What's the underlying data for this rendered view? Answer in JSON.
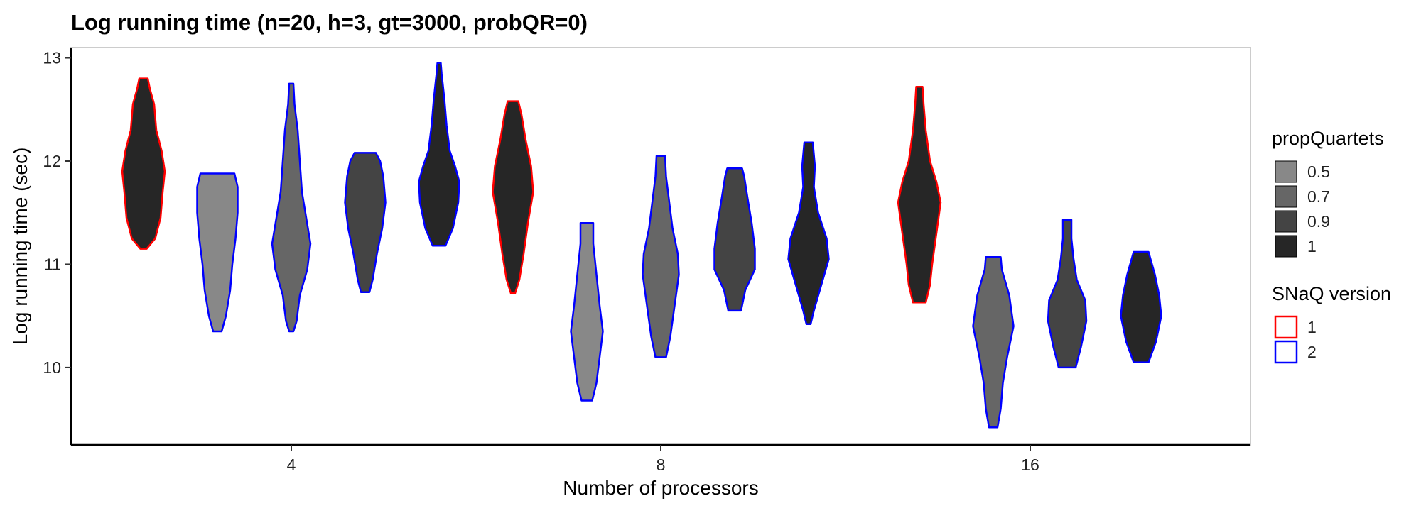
{
  "chart_data": {
    "type": "violin",
    "title": "Log running time (n=20, h=3, gt=3000, probQR=0)",
    "xlabel": "Number of processors",
    "ylabel": "Log running time (sec)",
    "categories": [
      "4",
      "8",
      "16"
    ],
    "yticks": [
      10,
      11,
      12,
      13
    ],
    "ylim": [
      9.25,
      13.1
    ],
    "grid": false,
    "legend_position": "right",
    "legends": {
      "fill": {
        "title": "propQuartets",
        "items": [
          {
            "label": "0.5",
            "color": "#888888"
          },
          {
            "label": "0.7",
            "color": "#666666"
          },
          {
            "label": "0.9",
            "color": "#444444"
          },
          {
            "label": "1",
            "color": "#262626"
          }
        ]
      },
      "outline": {
        "title": "SNaQ version",
        "items": [
          {
            "label": "1",
            "color": "#ff0000"
          },
          {
            "label": "2",
            "color": "#0000ff"
          }
        ]
      }
    },
    "violins": [
      {
        "processors": "4",
        "propQuartets": "1",
        "version": "1",
        "min": 11.15,
        "max": 12.8,
        "profile": [
          [
            11.15,
            0.15
          ],
          [
            11.25,
            0.55
          ],
          [
            11.45,
            0.8
          ],
          [
            11.7,
            0.9
          ],
          [
            11.9,
            1.0
          ],
          [
            12.1,
            0.85
          ],
          [
            12.3,
            0.6
          ],
          [
            12.55,
            0.5
          ],
          [
            12.7,
            0.3
          ],
          [
            12.8,
            0.2
          ]
        ]
      },
      {
        "processors": "4",
        "propQuartets": "0.5",
        "version": "2",
        "min": 10.35,
        "max": 11.88,
        "profile": [
          [
            10.35,
            0.2
          ],
          [
            10.5,
            0.4
          ],
          [
            10.75,
            0.6
          ],
          [
            11.0,
            0.7
          ],
          [
            11.25,
            0.85
          ],
          [
            11.5,
            0.95
          ],
          [
            11.75,
            0.95
          ],
          [
            11.88,
            0.8
          ]
        ]
      },
      {
        "processors": "4",
        "propQuartets": "0.7",
        "version": "2",
        "min": 10.35,
        "max": 12.75,
        "profile": [
          [
            10.35,
            0.1
          ],
          [
            10.45,
            0.25
          ],
          [
            10.7,
            0.4
          ],
          [
            10.95,
            0.75
          ],
          [
            11.2,
            0.9
          ],
          [
            11.45,
            0.7
          ],
          [
            11.7,
            0.5
          ],
          [
            12.0,
            0.4
          ],
          [
            12.3,
            0.3
          ],
          [
            12.55,
            0.15
          ],
          [
            12.75,
            0.1
          ]
        ]
      },
      {
        "processors": "4",
        "propQuartets": "0.9",
        "version": "2",
        "min": 10.73,
        "max": 12.08,
        "profile": [
          [
            10.73,
            0.2
          ],
          [
            10.85,
            0.35
          ],
          [
            11.1,
            0.55
          ],
          [
            11.35,
            0.8
          ],
          [
            11.6,
            0.95
          ],
          [
            11.85,
            0.85
          ],
          [
            12.0,
            0.7
          ],
          [
            12.08,
            0.5
          ]
        ]
      },
      {
        "processors": "4",
        "propQuartets": "1",
        "version": "2",
        "min": 11.18,
        "max": 12.95,
        "profile": [
          [
            11.18,
            0.3
          ],
          [
            11.35,
            0.65
          ],
          [
            11.6,
            0.9
          ],
          [
            11.8,
            0.95
          ],
          [
            11.95,
            0.75
          ],
          [
            12.1,
            0.5
          ],
          [
            12.35,
            0.35
          ],
          [
            12.6,
            0.25
          ],
          [
            12.85,
            0.12
          ],
          [
            12.95,
            0.08
          ]
        ]
      },
      {
        "processors": "8",
        "propQuartets": "1",
        "version": "1",
        "min": 10.72,
        "max": 12.58,
        "profile": [
          [
            10.72,
            0.1
          ],
          [
            10.85,
            0.3
          ],
          [
            11.1,
            0.5
          ],
          [
            11.4,
            0.7
          ],
          [
            11.7,
            0.95
          ],
          [
            11.95,
            0.85
          ],
          [
            12.2,
            0.6
          ],
          [
            12.45,
            0.4
          ],
          [
            12.58,
            0.25
          ]
        ]
      },
      {
        "processors": "8",
        "propQuartets": "0.5",
        "version": "2",
        "min": 9.68,
        "max": 11.4,
        "profile": [
          [
            9.68,
            0.25
          ],
          [
            9.85,
            0.45
          ],
          [
            10.1,
            0.6
          ],
          [
            10.35,
            0.75
          ],
          [
            10.6,
            0.6
          ],
          [
            10.9,
            0.45
          ],
          [
            11.2,
            0.3
          ],
          [
            11.4,
            0.3
          ]
        ]
      },
      {
        "processors": "8",
        "propQuartets": "0.7",
        "version": "2",
        "min": 10.1,
        "max": 12.05,
        "profile": [
          [
            10.1,
            0.25
          ],
          [
            10.3,
            0.45
          ],
          [
            10.6,
            0.65
          ],
          [
            10.9,
            0.85
          ],
          [
            11.1,
            0.8
          ],
          [
            11.35,
            0.55
          ],
          [
            11.6,
            0.4
          ],
          [
            11.85,
            0.25
          ],
          [
            12.05,
            0.2
          ]
        ]
      },
      {
        "processors": "8",
        "propQuartets": "0.9",
        "version": "2",
        "min": 10.55,
        "max": 11.93,
        "profile": [
          [
            10.55,
            0.3
          ],
          [
            10.75,
            0.5
          ],
          [
            10.95,
            0.95
          ],
          [
            11.15,
            0.95
          ],
          [
            11.4,
            0.8
          ],
          [
            11.65,
            0.6
          ],
          [
            11.85,
            0.45
          ],
          [
            11.93,
            0.35
          ]
        ]
      },
      {
        "processors": "8",
        "propQuartets": "1",
        "version": "2",
        "min": 10.42,
        "max": 12.18,
        "profile": [
          [
            10.42,
            0.1
          ],
          [
            10.55,
            0.25
          ],
          [
            10.8,
            0.6
          ],
          [
            11.05,
            0.95
          ],
          [
            11.25,
            0.85
          ],
          [
            11.5,
            0.45
          ],
          [
            11.75,
            0.25
          ],
          [
            11.95,
            0.3
          ],
          [
            12.18,
            0.2
          ]
        ]
      },
      {
        "processors": "16",
        "propQuartets": "1",
        "version": "1",
        "min": 10.63,
        "max": 12.72,
        "profile": [
          [
            10.63,
            0.3
          ],
          [
            10.8,
            0.5
          ],
          [
            11.0,
            0.6
          ],
          [
            11.3,
            0.8
          ],
          [
            11.6,
            1.0
          ],
          [
            11.8,
            0.8
          ],
          [
            12.0,
            0.5
          ],
          [
            12.3,
            0.3
          ],
          [
            12.55,
            0.2
          ],
          [
            12.72,
            0.15
          ]
        ]
      },
      {
        "processors": "16",
        "propQuartets": "0.7",
        "version": "2",
        "min": 9.42,
        "max": 11.07,
        "profile": [
          [
            9.42,
            0.2
          ],
          [
            9.6,
            0.35
          ],
          [
            9.85,
            0.45
          ],
          [
            10.1,
            0.65
          ],
          [
            10.4,
            0.95
          ],
          [
            10.7,
            0.75
          ],
          [
            10.95,
            0.4
          ],
          [
            11.07,
            0.35
          ]
        ]
      },
      {
        "processors": "16",
        "propQuartets": "0.9",
        "version": "2",
        "min": 10.0,
        "max": 11.43,
        "profile": [
          [
            10.0,
            0.4
          ],
          [
            10.2,
            0.65
          ],
          [
            10.45,
            0.9
          ],
          [
            10.65,
            0.85
          ],
          [
            10.85,
            0.45
          ],
          [
            11.05,
            0.3
          ],
          [
            11.25,
            0.2
          ],
          [
            11.43,
            0.2
          ]
        ]
      },
      {
        "processors": "16",
        "propQuartets": "1",
        "version": "2",
        "min": 10.05,
        "max": 11.12,
        "profile": [
          [
            10.05,
            0.35
          ],
          [
            10.25,
            0.7
          ],
          [
            10.5,
            0.95
          ],
          [
            10.7,
            0.85
          ],
          [
            10.9,
            0.65
          ],
          [
            11.12,
            0.35
          ]
        ]
      }
    ]
  }
}
